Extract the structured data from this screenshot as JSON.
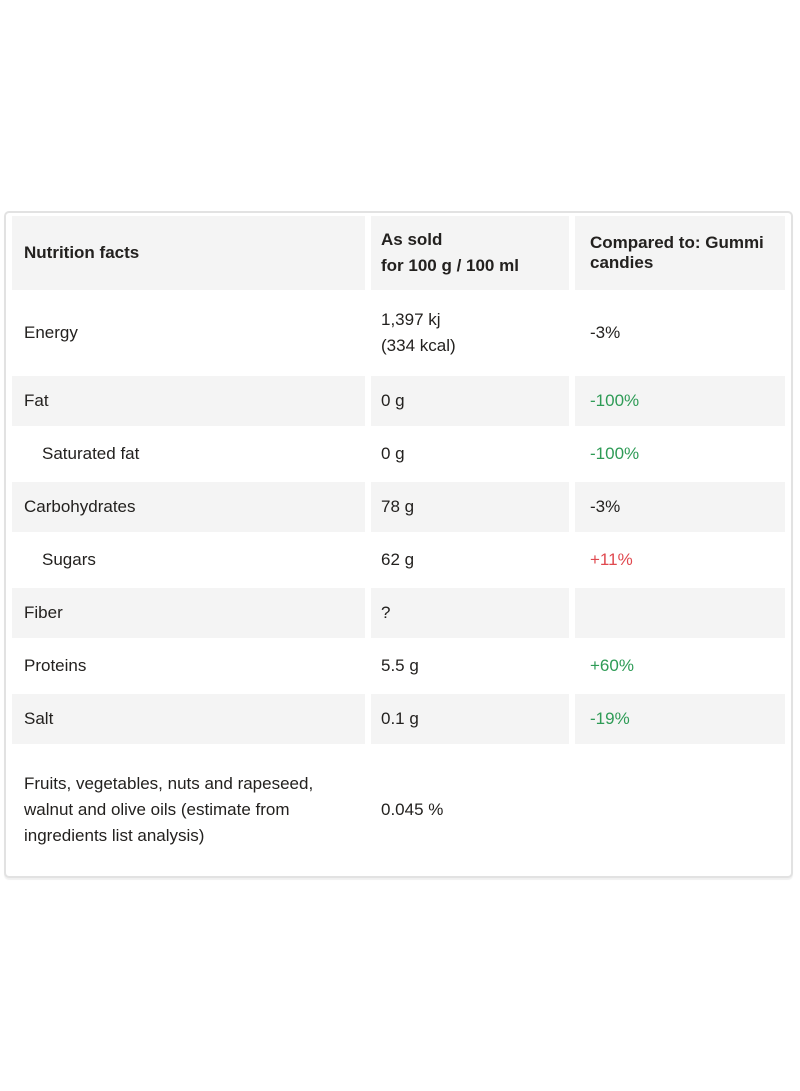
{
  "colors": {
    "positive_comparison_green": "#2e9b56",
    "negative_comparison_red": "#e0494f",
    "shaded_row_background": "#f4f4f4",
    "table_border": "#e2e2e2",
    "text": "#23211f"
  },
  "table": {
    "header": {
      "title": "Nutrition facts",
      "as_sold": "As sold\nfor 100 g / 100 ml",
      "compared_to": "Compared to: Gummi candies"
    },
    "rows": [
      {
        "label": "Energy",
        "value": "1,397 kj\n(334 kcal)",
        "comparison": "-3%"
      },
      {
        "label": "Fat",
        "value": "0 g",
        "comparison": "-100%"
      },
      {
        "label": "Saturated fat",
        "value": "0 g",
        "comparison": "-100%"
      },
      {
        "label": "Carbohydrates",
        "value": "78 g",
        "comparison": "-3%"
      },
      {
        "label": "Sugars",
        "value": "62 g",
        "comparison": "+11%"
      },
      {
        "label": "Fiber",
        "value": "?",
        "comparison": ""
      },
      {
        "label": "Proteins",
        "value": "5.5 g",
        "comparison": "+60%"
      },
      {
        "label": "Salt",
        "value": "0.1 g",
        "comparison": "-19%"
      },
      {
        "label": "Fruits, vegetables, nuts and rapeseed, walnut and olive oils (estimate from ingredients list analysis)",
        "value": "0.045 %",
        "comparison": ""
      }
    ]
  }
}
